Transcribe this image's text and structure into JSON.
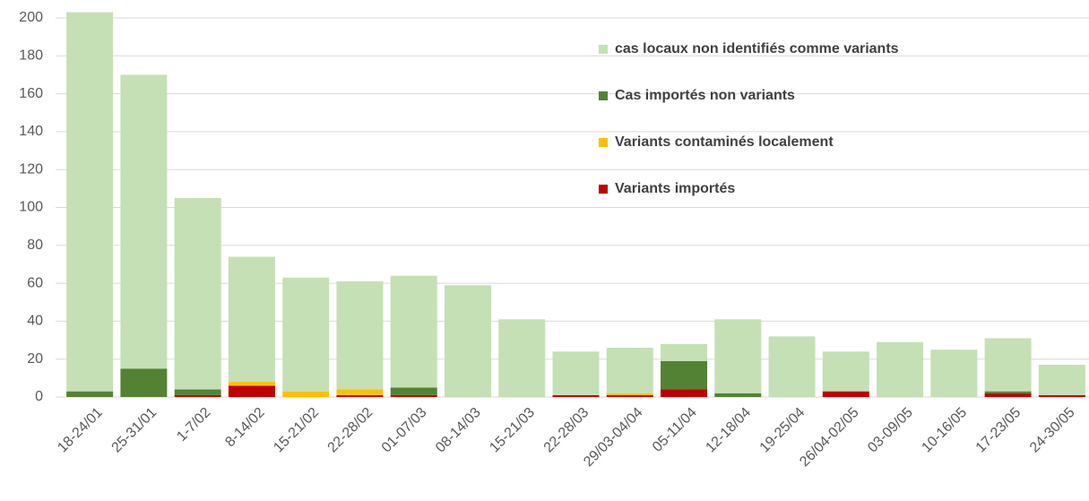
{
  "chart_data": {
    "type": "stacked_bar",
    "categories": [
      "18-24/01",
      "25-31/01",
      "1-7/02",
      "8-14/02",
      "15-21/02",
      "22-28/02",
      "01-07/03",
      "08-14/03",
      "15-21/03",
      "22-28/03",
      "29/03-04/04",
      "05-11/04",
      "12-18/04",
      "19-25/04",
      "26/04-02/05",
      "03-09/05",
      "10-16/05",
      "17-23/05",
      "24-30/05"
    ],
    "series": [
      {
        "name": "Variants importés",
        "color": "#c00000",
        "values": [
          0,
          0,
          1,
          6,
          0,
          1,
          1,
          0,
          0,
          1,
          1,
          4,
          0,
          0,
          3,
          0,
          0,
          2,
          1
        ]
      },
      {
        "name": "Variants contaminés localement",
        "color": "#ffc000",
        "values": [
          0,
          0,
          0,
          2,
          3,
          3,
          0,
          0,
          0,
          0,
          1,
          0,
          0,
          0,
          0,
          0,
          0,
          0,
          0
        ]
      },
      {
        "name": "Cas importés non variants",
        "color": "#548235",
        "values": [
          3,
          15,
          3,
          0,
          0,
          0,
          4,
          0,
          0,
          0,
          0,
          15,
          2,
          0,
          0,
          0,
          0,
          1,
          0
        ]
      },
      {
        "name": "cas locaux non identifiés comme variants",
        "color": "#c5e0b4",
        "values": [
          200,
          155,
          101,
          66,
          60,
          57,
          59,
          59,
          41,
          23,
          24,
          9,
          39,
          32,
          21,
          29,
          25,
          28,
          16
        ]
      }
    ],
    "ylim": [
      0,
      200
    ],
    "yticks": [
      0,
      20,
      40,
      60,
      80,
      100,
      120,
      140,
      160,
      180,
      200
    ],
    "grid": true
  }
}
